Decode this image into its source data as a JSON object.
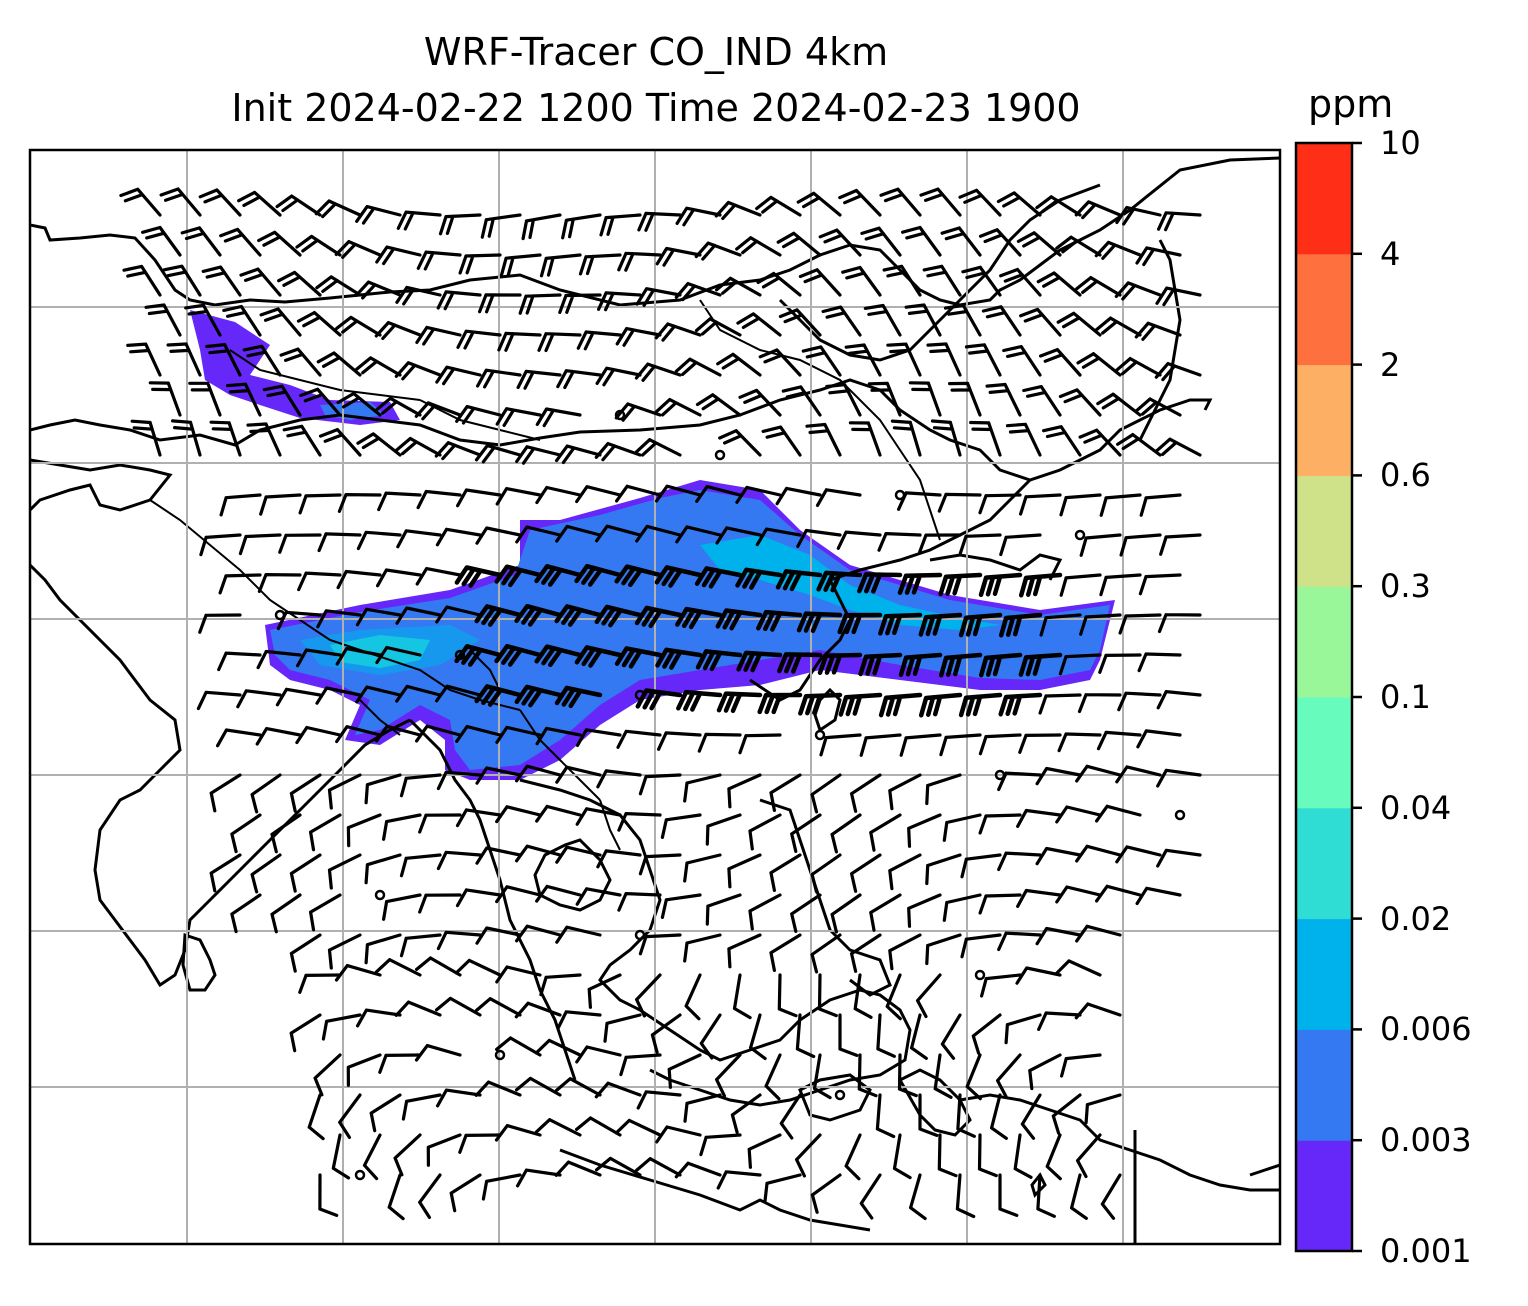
{
  "title": {
    "line1": "WRF-Tracer CO_IND 4km",
    "line2": "Init 2024-02-22 1200 Time 2024-02-23 1900"
  },
  "map": {
    "type": "filled-contour map with wind barbs",
    "grid": true,
    "coastlines": true,
    "overlay": "wind barbs",
    "plume_region": "India to East Asia tracer plume"
  },
  "colorbar": {
    "unit": "ppm",
    "levels": [
      "0.001",
      "0.003",
      "0.006",
      "0.02",
      "0.04",
      "0.1",
      "0.3",
      "0.6",
      "2",
      "4",
      "10"
    ],
    "colors": [
      "#6528f8",
      "#3479f2",
      "#00b2ec",
      "#2fddd4",
      "#67fbbd",
      "#9af799",
      "#cfe28a",
      "#fdb063",
      "#fe713e",
      "#ff2e17"
    ]
  }
}
